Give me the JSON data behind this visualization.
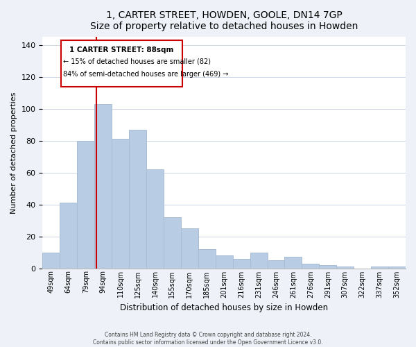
{
  "title": "1, CARTER STREET, HOWDEN, GOOLE, DN14 7GP",
  "subtitle": "Size of property relative to detached houses in Howden",
  "xlabel": "Distribution of detached houses by size in Howden",
  "ylabel": "Number of detached properties",
  "categories": [
    "49sqm",
    "64sqm",
    "79sqm",
    "94sqm",
    "110sqm",
    "125sqm",
    "140sqm",
    "155sqm",
    "170sqm",
    "185sqm",
    "201sqm",
    "216sqm",
    "231sqm",
    "246sqm",
    "261sqm",
    "276sqm",
    "291sqm",
    "307sqm",
    "322sqm",
    "337sqm",
    "352sqm"
  ],
  "values": [
    10,
    41,
    80,
    103,
    81,
    87,
    62,
    32,
    25,
    12,
    8,
    6,
    10,
    5,
    7,
    3,
    2,
    1,
    0,
    1,
    1
  ],
  "bar_color": "#b8cce4",
  "bar_edge_color": "#a8bcd4",
  "vline_color": "#cc0000",
  "annotation_box_edge": "#cc0000",
  "marker_label": "1 CARTER STREET: 88sqm",
  "annotation_line1": "← 15% of detached houses are smaller (82)",
  "annotation_line2": "84% of semi-detached houses are larger (469) →",
  "ylim": [
    0,
    145
  ],
  "yticks": [
    0,
    20,
    40,
    60,
    80,
    100,
    120,
    140
  ],
  "footer1": "Contains HM Land Registry data © Crown copyright and database right 2024.",
  "footer2": "Contains public sector information licensed under the Open Government Licence v3.0.",
  "bg_color": "#eef2f8",
  "plot_bg_color": "#ffffff"
}
